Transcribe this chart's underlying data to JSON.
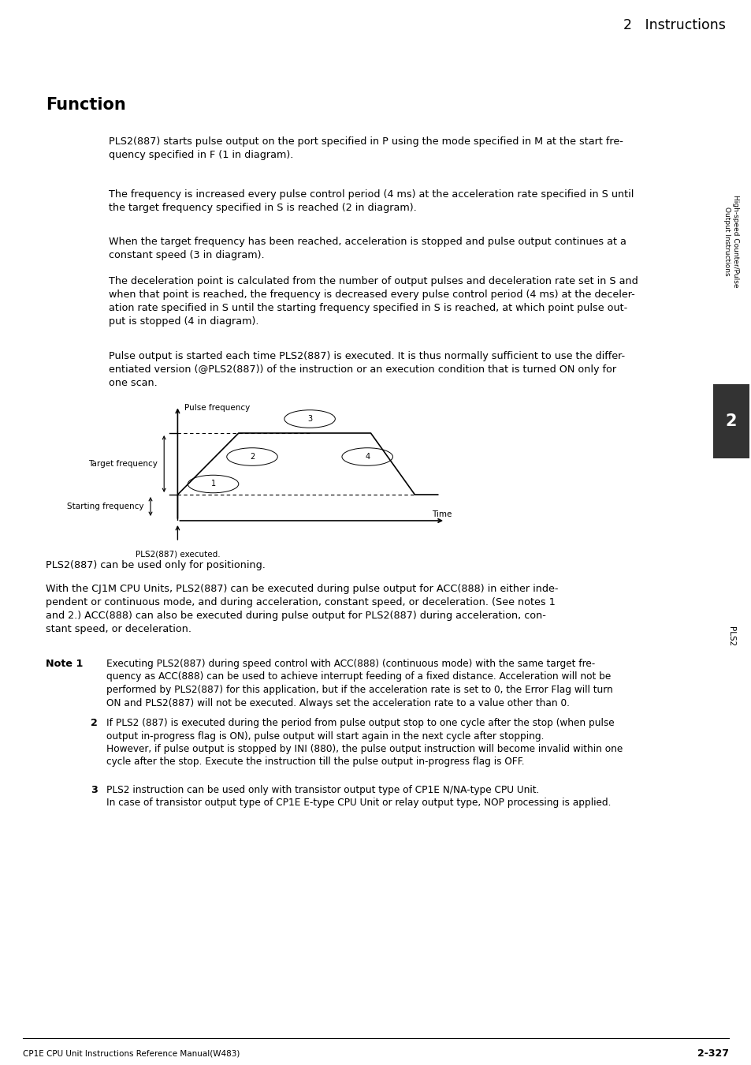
{
  "page_bg": "#ffffff",
  "header_bg": "#dcdcdc",
  "header_text": "2   Instructions",
  "sidebar_bg": "#dcdcdc",
  "title": "Function",
  "para1": "PLS2(887) starts pulse output on the port specified in P using the mode specified in M at the start fre-\nquency specified in F (1 in diagram).",
  "para2": "The frequency is increased every pulse control period (4 ms) at the acceleration rate specified in S until\nthe target frequency specified in S is reached (2 in diagram).",
  "para3": "When the target frequency has been reached, acceleration is stopped and pulse output continues at a\nconstant speed (3 in diagram).",
  "para4": "The deceleration point is calculated from the number of output pulses and deceleration rate set in S and\nwhen that point is reached, the frequency is decreased every pulse control period (4 ms) at the deceler-\nation rate specified in S until the starting frequency specified in S is reached, at which point pulse out-\nput is stopped (4 in diagram).",
  "para5": "Pulse output is started each time PLS2(887) is executed. It is thus normally sufficient to use the differ-\nentiated version (@PLS2(887)) of the instruction or an execution condition that is turned ON only for\none scan.",
  "diag_ylabel": "Pulse frequency",
  "diag_xlabel": "Time",
  "diag_target_freq": "Target frequency",
  "diag_start_freq": "Starting frequency",
  "diag_executed": "PLS2(887) executed.",
  "post1": "PLS2(887) can be used only for positioning.",
  "post2": "With the CJ1M CPU Units, PLS2(887) can be executed during pulse output for ACC(888) in either inde-\npendent or continuous mode, and during acceleration, constant speed, or deceleration. (See notes 1\nand 2.) ACC(888) can also be executed during pulse output for PLS2(887) during acceleration, con-\nstant speed, or deceleration.",
  "note1_label": "Note 1",
  "note1_text": "Executing PLS2(887) during speed control with ACC(888) (continuous mode) with the same target fre-\nquency as ACC(888) can be used to achieve interrupt feeding of a fixed distance. Acceleration will not be\nperformed by PLS2(887) for this application, but if the acceleration rate is set to 0, the Error Flag will turn\nON and PLS2(887) will not be executed. Always set the acceleration rate to a value other than 0.",
  "note2_label": "2",
  "note2_text": "If PLS2 (887) is executed during the period from pulse output stop to one cycle after the stop (when pulse\noutput in-progress flag is ON), pulse output will start again in the next cycle after stopping.\nHowever, if pulse output is stopped by INI (880), the pulse output instruction will become invalid within one\ncycle after the stop. Execute the instruction till the pulse output in-progress flag is OFF.",
  "note3_label": "3",
  "note3_text": "PLS2 instruction can be used only with transistor output type of CP1E N/NA-type CPU Unit.\nIn case of transistor output type of CP1E E-type CPU Unit or relay output type, NOP processing is applied.",
  "footer_left": "CP1E CPU Unit Instructions Reference Manual(W483)",
  "footer_right": "2-327",
  "sidebar_text1": "High-speed Counter/Pulse",
  "sidebar_text2": "Output Instructions",
  "sidebar_num": "2",
  "sidebar_text3": "PLS2"
}
